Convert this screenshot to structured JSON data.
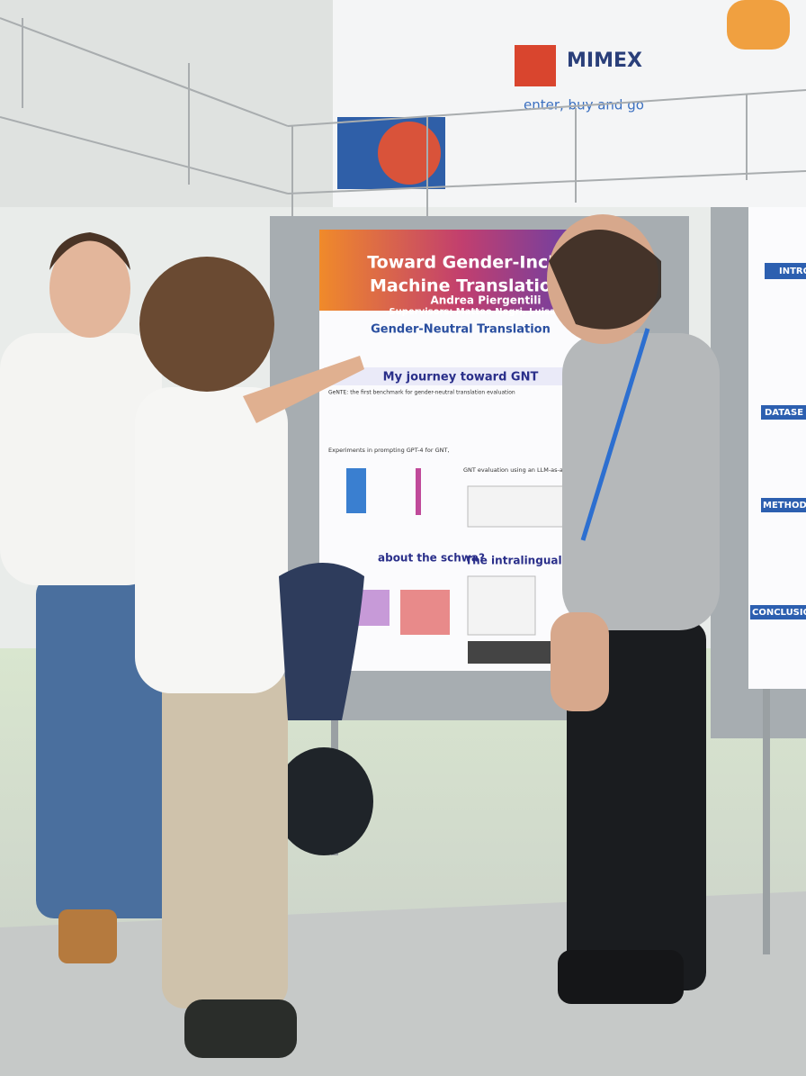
{
  "signage": {
    "brand": "MIMEX",
    "slogan": "enter, buy and go"
  },
  "poster": {
    "title_line1": "Toward Gender-Incl",
    "title_line2": "Machine Translatio",
    "author": "Andrea Piergentili",
    "supervisors": "Supervisors: Matteo Negri, Luisa Bentiv",
    "section1": "Gender-Neutral Translation",
    "section2": "My journey toward GNT",
    "benchmark": "GeNTE: the first benchmark for gender-neutral translation evaluation",
    "experiments": "Experiments in prompting GPT-4 for GNT,",
    "evaluation": "GNT evaluation using an LLM-as-a-J",
    "section3": "about the schwa?",
    "section4": "The intralingual sc"
  },
  "side_poster": {
    "headings": [
      "INTRODU",
      "DATASE",
      "METHODOL",
      "CONCLUSION"
    ]
  }
}
